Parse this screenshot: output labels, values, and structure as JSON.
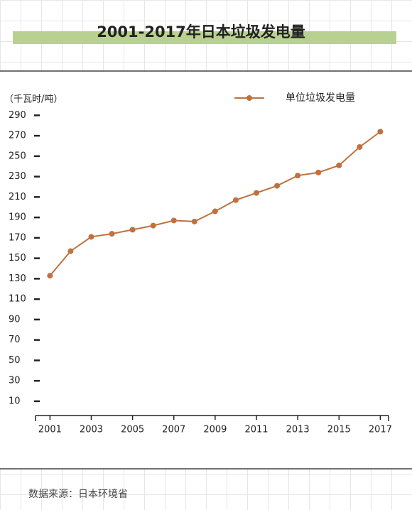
{
  "chart_data": {
    "type": "line",
    "title": "2001-2017年日本垃圾发电量",
    "y_unit": "（千瓦时/吨）",
    "source": "数据来源：日本环境省",
    "x": [
      2001,
      2002,
      2003,
      2004,
      2005,
      2006,
      2007,
      2008,
      2009,
      2010,
      2011,
      2012,
      2013,
      2014,
      2015,
      2016,
      2017
    ],
    "series": [
      {
        "name": "单位垃圾发电量",
        "color": "#c0713f",
        "values": [
          133,
          157,
          171,
          174,
          178,
          182,
          187,
          186,
          196,
          207,
          214,
          221,
          231,
          234,
          241,
          259,
          274
        ]
      }
    ],
    "xlim": [
      2000.3,
      2017.4
    ],
    "xticks": [
      2001,
      2003,
      2005,
      2007,
      2009,
      2011,
      2013,
      2015,
      2017
    ],
    "ylim": [
      -4,
      300
    ],
    "yticks": [
      10,
      30,
      50,
      70,
      90,
      110,
      130,
      150,
      170,
      190,
      210,
      230,
      250,
      270,
      290
    ],
    "legend": "top-right"
  }
}
